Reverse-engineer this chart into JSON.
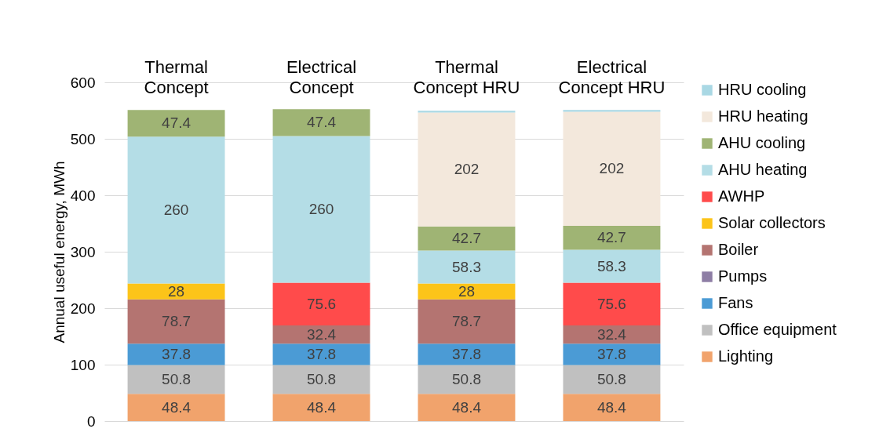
{
  "chart_data": {
    "type": "bar",
    "stacked": true,
    "ylabel": "Annual useful energy, MWh",
    "categories": [
      "Thermal Concept",
      "Electrical Concept",
      "Thermal Concept HRU",
      "Electrical Concept HRU"
    ],
    "series": [
      {
        "name": "Lighting",
        "color": "#f1a36c",
        "values": [
          48.4,
          48.4,
          48.4,
          48.4
        ],
        "value_labels": [
          "48.4",
          "48.4",
          "48.4",
          "48.4"
        ]
      },
      {
        "name": "Office equipment",
        "color": "#c0c0c0",
        "values": [
          50.8,
          50.8,
          50.8,
          50.8
        ],
        "value_labels": [
          "50.8",
          "50.8",
          "50.8",
          "50.8"
        ]
      },
      {
        "name": "Fans",
        "color": "#4b9bd5",
        "values": [
          37.8,
          37.8,
          37.8,
          37.8
        ],
        "value_labels": [
          "37.8",
          "37.8",
          "37.8",
          "37.8"
        ]
      },
      {
        "name": "Pumps",
        "color": "#8e7ea5",
        "values": [
          null,
          null,
          null,
          null
        ],
        "value_labels": [
          null,
          null,
          null,
          null
        ]
      },
      {
        "name": "Boiler",
        "color": "#b47471",
        "values": [
          78.7,
          32.4,
          78.7,
          32.4
        ],
        "value_labels": [
          "78.7",
          "32.4",
          "78.7",
          "32.4"
        ]
      },
      {
        "name": "Solar collectors",
        "color": "#fcc419",
        "values": [
          28,
          null,
          28,
          null
        ],
        "value_labels": [
          "28",
          null,
          "28",
          null
        ]
      },
      {
        "name": "AWHP",
        "color": "#ff4b4b",
        "values": [
          null,
          75.6,
          null,
          75.6
        ],
        "value_labels": [
          null,
          "75.6",
          null,
          "75.6"
        ]
      },
      {
        "name": "AHU heating",
        "color": "#b4dde6",
        "values": [
          260,
          260,
          58.3,
          58.3
        ],
        "value_labels": [
          "260",
          "260",
          "58.3",
          "58.3"
        ]
      },
      {
        "name": "AHU cooling",
        "color": "#9fb474",
        "values": [
          47.4,
          47.4,
          42.7,
          42.7
        ],
        "value_labels": [
          "47.4",
          "47.4",
          "42.7",
          "42.7"
        ]
      },
      {
        "name": "HRU heating",
        "color": "#f3e8dc",
        "values": [
          null,
          null,
          202,
          202
        ],
        "value_labels": [
          null,
          null,
          "202",
          "202"
        ]
      },
      {
        "name": "HRU cooling",
        "color": "#a9d8e4",
        "values": [
          null,
          null,
          3,
          3
        ],
        "value_labels": [
          null,
          null,
          null,
          null
        ]
      }
    ],
    "ylim": [
      0,
      600
    ],
    "yticks": [
      0,
      100,
      200,
      300,
      400,
      500,
      600
    ],
    "grid": "y",
    "legend": "right"
  }
}
